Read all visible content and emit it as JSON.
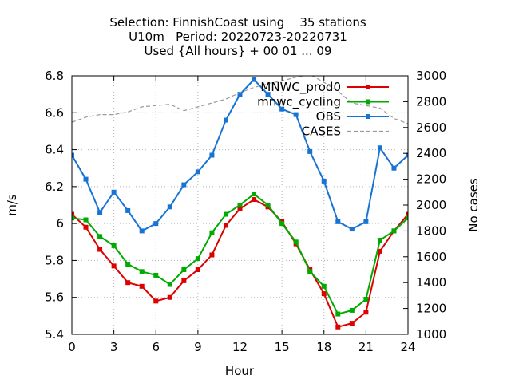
{
  "chart_data": {
    "type": "line",
    "title_lines": [
      "Selection: FinnishCoast using    35 stations",
      "U10m   Period: 20220723-20220731",
      "Used {All hours} + 00 01 ... 09"
    ],
    "xlabel": "Hour",
    "ylabel": "m/s",
    "y2label": "No cases",
    "xlim": [
      0,
      24
    ],
    "ylim": [
      5.4,
      6.8
    ],
    "y2lim": [
      1000,
      3000
    ],
    "xticks": [
      0,
      3,
      6,
      9,
      12,
      15,
      18,
      21,
      24
    ],
    "yticks": [
      5.4,
      5.6,
      5.8,
      6,
      6.2,
      6.4,
      6.6,
      6.8
    ],
    "ytick_labels": [
      "5.4",
      "5.6",
      "5.8",
      "6",
      "6.2",
      "6.4",
      "6.6",
      "6.8"
    ],
    "y2ticks": [
      1000,
      1200,
      1400,
      1600,
      1800,
      2000,
      2200,
      2400,
      2600,
      2800,
      3000
    ],
    "grid": true,
    "legend_position": "top-right",
    "x": [
      0,
      1,
      2,
      3,
      4,
      5,
      6,
      7,
      8,
      9,
      10,
      11,
      12,
      13,
      14,
      15,
      16,
      17,
      18,
      19,
      20,
      21,
      22,
      23,
      24
    ],
    "series": [
      {
        "name": "MNWC_prod0",
        "color": "#dd0000",
        "axis": "y",
        "values": [
          6.05,
          5.98,
          5.86,
          5.77,
          5.68,
          5.66,
          5.58,
          5.6,
          5.69,
          5.75,
          5.83,
          5.99,
          6.08,
          6.13,
          6.09,
          6.01,
          5.89,
          5.75,
          5.62,
          5.44,
          5.46,
          5.52,
          5.85,
          5.96,
          6.05
        ]
      },
      {
        "name": "mnwc_cycling",
        "color": "#00aa00",
        "axis": "y",
        "values": [
          6.03,
          6.02,
          5.93,
          5.88,
          5.78,
          5.74,
          5.72,
          5.67,
          5.75,
          5.81,
          5.95,
          6.05,
          6.1,
          6.16,
          6.1,
          6.0,
          5.9,
          5.74,
          5.66,
          5.51,
          5.53,
          5.59,
          5.91,
          5.96,
          6.03
        ]
      },
      {
        "name": "OBS",
        "color": "#1773d4",
        "axis": "y",
        "values": [
          6.37,
          6.24,
          6.06,
          6.17,
          6.07,
          5.96,
          6.0,
          6.09,
          6.21,
          6.28,
          6.37,
          6.56,
          6.7,
          6.78,
          6.7,
          6.62,
          6.59,
          6.39,
          6.23,
          6.01,
          5.97,
          6.01,
          6.41,
          6.3,
          6.37
        ]
      },
      {
        "name": "CASES",
        "color": "#999999",
        "axis": "y2",
        "values": [
          2640,
          2680,
          2700,
          2700,
          2720,
          2760,
          2770,
          2780,
          2730,
          2760,
          2790,
          2820,
          2870,
          2910,
          2940,
          2960,
          2990,
          3010,
          2950,
          2880,
          2790,
          2770,
          2750,
          2670,
          2630
        ]
      }
    ]
  }
}
